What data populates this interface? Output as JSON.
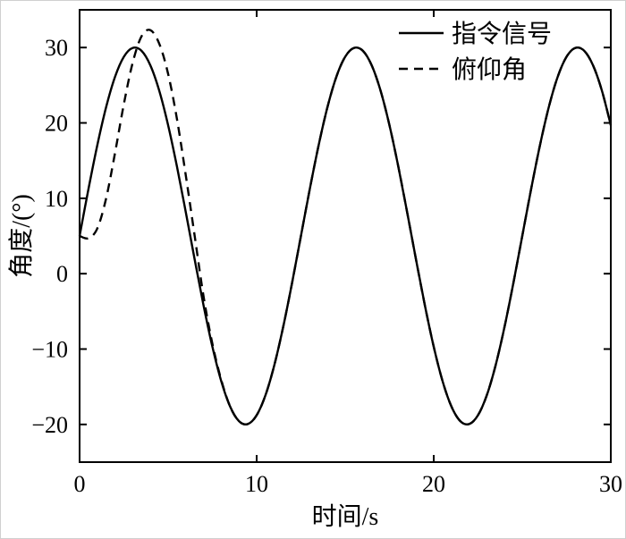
{
  "chart_data": {
    "type": "line",
    "title": "",
    "xlabel": "时间/s",
    "ylabel": "角度/(°)",
    "xlim": [
      0,
      30
    ],
    "ylim": [
      -25,
      35
    ],
    "xticks": [
      0,
      10,
      20,
      30
    ],
    "yticks": [
      -20,
      -10,
      0,
      10,
      20,
      30
    ],
    "grid": false,
    "legend_position": "top-right",
    "line_color": "#000000",
    "series": [
      {
        "name": "指令信号",
        "style": "solid",
        "color": "#000000",
        "x": [
          0,
          0.5,
          1,
          1.5,
          2,
          2.5,
          3,
          3.5,
          4,
          4.5,
          5,
          5.5,
          6,
          6.5,
          7,
          7.5,
          8,
          8.5,
          9,
          9.5,
          10,
          10.5,
          11,
          11.5,
          12,
          12.5,
          13,
          13.5,
          14,
          14.5,
          15,
          15.5,
          16,
          16.5,
          17,
          17.5,
          18,
          18.5,
          19,
          19.5,
          20,
          20.5,
          21,
          21.5,
          22,
          22.5,
          23,
          23.5,
          24,
          24.5,
          25,
          25.5,
          26,
          26.5,
          27,
          27.5,
          28,
          28.5,
          29,
          29.5,
          30
        ],
        "y": [
          5,
          11.22,
          17.04,
          22.11,
          26.11,
          28.78,
          29.95,
          29.56,
          27.62,
          24.26,
          19.69,
          14.2,
          8.13,
          1.87,
          -4.2,
          -9.69,
          -14.26,
          -17.62,
          -19.56,
          -19.95,
          -18.78,
          -16.11,
          -12.11,
          -7.04,
          -1.22,
          5,
          11.22,
          17.04,
          22.11,
          26.11,
          28.78,
          29.95,
          29.56,
          27.62,
          24.26,
          19.69,
          14.2,
          8.13,
          1.87,
          -4.2,
          -9.69,
          -14.26,
          -17.62,
          -19.56,
          -19.95,
          -18.78,
          -16.11,
          -12.11,
          -7.04,
          -1.22,
          5,
          11.22,
          17.04,
          22.11,
          26.11,
          28.78,
          29.95,
          29.56,
          27.62,
          24.26,
          19.69
        ]
      },
      {
        "name": "俯仰角",
        "style": "dashed",
        "color": "#000000",
        "x": [
          0,
          0.5,
          1,
          1.5,
          2,
          2.5,
          3,
          3.5,
          4,
          4.5,
          5,
          5.5,
          6,
          6.5,
          7,
          7.5,
          8,
          8.5,
          9,
          9.5,
          10,
          10.5,
          11,
          11.5,
          12,
          12.5,
          13,
          13.5,
          14,
          14.5,
          15,
          15.5,
          16,
          16.5,
          17,
          17.5,
          18,
          18.5,
          19,
          19.5,
          20,
          20.5,
          21,
          21.5,
          22,
          22.5,
          23,
          23.5,
          24,
          24.5,
          25,
          25.5,
          26,
          26.5,
          27,
          27.5,
          28,
          28.5,
          29,
          29.5,
          30
        ],
        "y": [
          5,
          4.7,
          6,
          10,
          16,
          22.5,
          28,
          31.5,
          32.3,
          30.5,
          26.5,
          20.5,
          13,
          5,
          -3,
          -9.3,
          -14.1,
          -17.62,
          -19.56,
          -19.95,
          -18.78,
          -16.11,
          -12.11,
          -7.04,
          -1.22,
          5,
          11.22,
          17.04,
          22.11,
          26.11,
          28.78,
          29.95,
          29.56,
          27.62,
          24.26,
          19.69,
          14.2,
          8.13,
          1.87,
          -4.2,
          -9.69,
          -14.26,
          -17.62,
          -19.56,
          -19.95,
          -18.78,
          -16.11,
          -12.11,
          -7.04,
          -1.22,
          5,
          11.22,
          17.04,
          22.11,
          26.11,
          28.78,
          29.95,
          29.56,
          27.62,
          24.26,
          19.69
        ]
      }
    ]
  }
}
